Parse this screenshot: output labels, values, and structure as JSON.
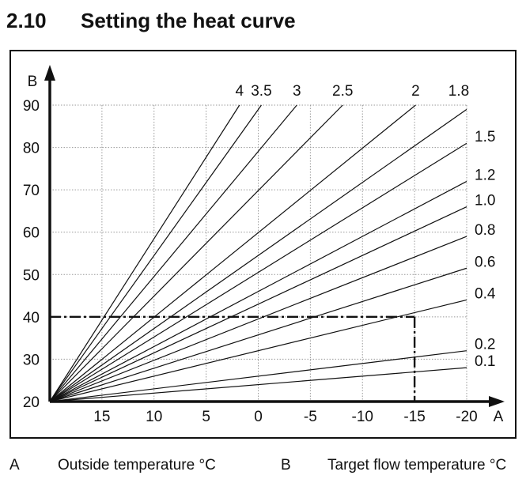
{
  "section": {
    "number": "2.10",
    "title": "Setting the heat curve"
  },
  "legend": [
    {
      "key": "A",
      "description": "Outside temperature °C"
    },
    {
      "key": "B",
      "description": "Target flow temperature °C"
    }
  ],
  "chart_data": {
    "type": "line",
    "title": "Setting the heat curve",
    "xlabel": "A",
    "ylabel": "B",
    "x_ticks": [
      15,
      10,
      5,
      0,
      -5,
      -10,
      -15,
      -20
    ],
    "x_tick_labels": [
      "15",
      "10",
      "5",
      "0",
      "-5",
      "-10",
      "-15",
      "-20"
    ],
    "y_ticks": [
      20,
      30,
      40,
      50,
      60,
      70,
      80,
      90
    ],
    "y_tick_labels": [
      "20",
      "30",
      "40",
      "50",
      "60",
      "70",
      "80",
      "90"
    ],
    "xlim": [
      20,
      -20
    ],
    "ylim": [
      20,
      90
    ],
    "x_reversed": true,
    "grid": true,
    "curve_origin": {
      "x": 20,
      "y": 20
    },
    "series": [
      {
        "name": "4",
        "label": "4",
        "end": {
          "x": 1.8,
          "y": 90
        }
      },
      {
        "name": "3.5",
        "label": "3.5",
        "end": {
          "x": -0.3,
          "y": 90
        }
      },
      {
        "name": "3",
        "label": "3",
        "end": {
          "x": -3.7,
          "y": 90
        }
      },
      {
        "name": "2.5",
        "label": "2.5",
        "end": {
          "x": -8.1,
          "y": 90
        }
      },
      {
        "name": "2",
        "label": "2",
        "end": {
          "x": -15.1,
          "y": 90
        }
      },
      {
        "name": "1.8",
        "label": "1.8",
        "end": {
          "x": -20,
          "y": 89
        }
      },
      {
        "name": "1.5",
        "label": "1.5",
        "end": {
          "x": -20,
          "y": 81
        }
      },
      {
        "name": "1.2",
        "label": "1.2",
        "end": {
          "x": -20,
          "y": 72
        }
      },
      {
        "name": "1.0",
        "label": "1.0",
        "end": {
          "x": -20,
          "y": 66
        }
      },
      {
        "name": "0.8",
        "label": "0.8",
        "end": {
          "x": -20,
          "y": 59
        }
      },
      {
        "name": "0.6",
        "label": "0.6",
        "end": {
          "x": -20,
          "y": 51.5
        }
      },
      {
        "name": "0.4",
        "label": "0.4",
        "end": {
          "x": -20,
          "y": 44
        }
      },
      {
        "name": "0.2",
        "label": "0.2",
        "end": {
          "x": -20,
          "y": 32
        }
      },
      {
        "name": "0.1",
        "label": "0.1",
        "end": {
          "x": -20,
          "y": 28
        }
      }
    ],
    "annotation": {
      "type": "dash-dot guide",
      "x": -15,
      "y": 40,
      "description": "Outside temperature -15 °C gives target flow temperature 40 °C on curve 0.4"
    }
  }
}
